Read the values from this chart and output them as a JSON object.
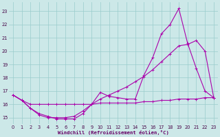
{
  "background_color": "#cce8e8",
  "grid_color": "#99cccc",
  "line_color": "#aa00aa",
  "xlabel": "Windchill (Refroidissement éolien,°C)",
  "xlim": [
    -0.5,
    23.5
  ],
  "ylim": [
    14.5,
    23.7
  ],
  "xticks": [
    0,
    1,
    2,
    3,
    4,
    5,
    6,
    7,
    8,
    9,
    10,
    11,
    12,
    13,
    14,
    15,
    16,
    17,
    18,
    19,
    20,
    21,
    22,
    23
  ],
  "yticks": [
    15,
    16,
    17,
    18,
    19,
    20,
    21,
    22,
    23
  ],
  "line1_x": [
    0,
    1,
    2,
    3,
    4,
    5,
    6,
    7,
    8,
    9,
    10,
    11,
    12,
    13,
    14,
    15,
    16,
    17,
    18,
    19,
    20,
    21,
    22,
    23
  ],
  "line1_y": [
    16.7,
    16.3,
    16.0,
    16.0,
    16.0,
    16.0,
    16.0,
    16.0,
    16.0,
    16.0,
    16.1,
    16.1,
    16.1,
    16.1,
    16.1,
    16.2,
    16.2,
    16.3,
    16.3,
    16.4,
    16.4,
    16.4,
    16.5,
    16.5
  ],
  "line2_x": [
    0,
    1,
    2,
    3,
    4,
    5,
    6,
    7,
    8,
    9,
    10,
    11,
    12,
    13,
    14,
    15,
    16,
    17,
    18,
    19,
    20,
    21,
    22,
    23
  ],
  "line2_y": [
    16.7,
    16.3,
    15.7,
    15.2,
    15.0,
    15.0,
    15.0,
    15.1,
    15.5,
    16.0,
    16.4,
    16.7,
    17.0,
    17.3,
    17.7,
    18.1,
    18.6,
    19.2,
    19.8,
    20.4,
    20.5,
    20.8,
    20.0,
    16.5
  ],
  "line3_x": [
    0,
    1,
    2,
    3,
    4,
    5,
    6,
    7,
    8,
    9,
    10,
    11,
    12,
    13,
    14,
    15,
    16,
    17,
    18,
    19,
    20,
    21,
    22,
    23
  ],
  "line3_y": [
    16.7,
    16.3,
    15.7,
    15.3,
    15.1,
    14.9,
    14.9,
    14.9,
    15.3,
    16.0,
    16.9,
    16.6,
    16.5,
    16.4,
    16.4,
    18.2,
    19.5,
    21.3,
    22.0,
    23.2,
    20.6,
    18.7,
    17.0,
    16.5
  ]
}
